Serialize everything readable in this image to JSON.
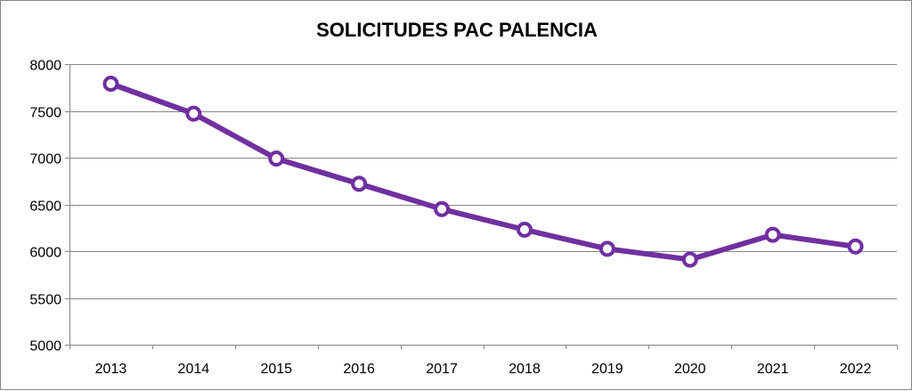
{
  "chart_data": {
    "type": "line",
    "title": "SOLICITUDES PAC PALENCIA",
    "xlabel": "",
    "ylabel": "",
    "categories": [
      "2013",
      "2014",
      "2015",
      "2016",
      "2017",
      "2018",
      "2019",
      "2020",
      "2021",
      "2022"
    ],
    "series": [
      {
        "values": [
          7790,
          7470,
          6990,
          6720,
          6450,
          6230,
          6025,
          5910,
          6175,
          6050
        ],
        "color": "#7030a0"
      }
    ],
    "ylim": [
      5000,
      8000
    ],
    "yticks": [
      5000,
      5500,
      6000,
      6500,
      7000,
      7500,
      8000
    ],
    "grid": true,
    "legend": "none"
  }
}
